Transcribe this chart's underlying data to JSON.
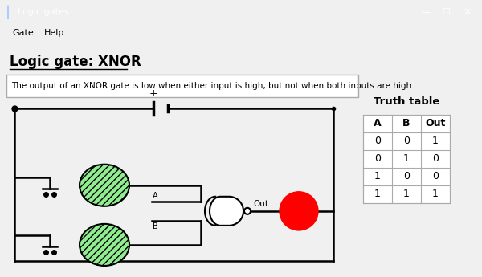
{
  "title": "Logic gate: XNOR",
  "description": "The output of an XNOR gate is low when either input is high, but not when both inputs are high.",
  "window_title": "Logic gates",
  "menu_items": [
    "Gate",
    "Help"
  ],
  "truth_table_title": "Truth table",
  "truth_table_headers": [
    "A",
    "B",
    "Out"
  ],
  "truth_table_rows": [
    [
      0,
      0,
      1
    ],
    [
      0,
      1,
      0
    ],
    [
      1,
      0,
      0
    ],
    [
      1,
      1,
      1
    ]
  ],
  "bg_color": "#f0f0f0",
  "titlebar_color": "#0078d7",
  "circuit_line_color": "#000000",
  "switch_off_color": "#90ee90",
  "switch_on_color": "#ff0000",
  "gate_fill_color": "#ffffff",
  "switch_hatch": "////",
  "switch_a_state": 0,
  "switch_b_state": 0,
  "output_state": 1
}
